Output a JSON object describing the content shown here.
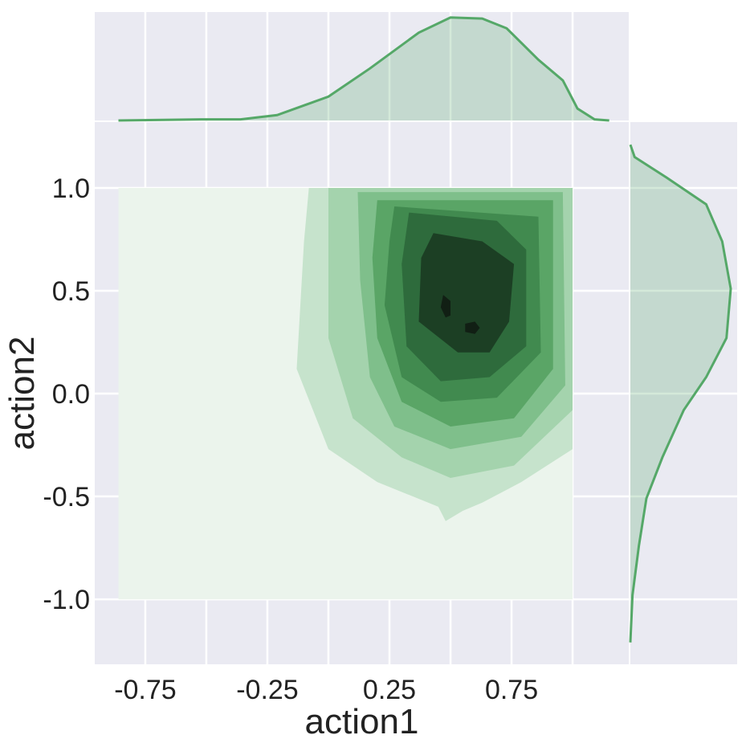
{
  "chart_data": [
    {
      "type": "kde2d",
      "xlabel": "action1",
      "ylabel": "action2",
      "xlim": [
        -0.957,
        1.23
      ],
      "ylim": [
        -1.316,
        1.32
      ],
      "xticks": [
        -0.75,
        -0.25,
        0.25,
        0.75
      ],
      "xgrid": [
        -0.75,
        -0.5,
        -0.25,
        0,
        0.25,
        0.5,
        0.75,
        1
      ],
      "yticks": [
        {
          "value": 1,
          "label": "1.0"
        },
        {
          "value": 0.5,
          "label": "0.5"
        },
        {
          "value": 0,
          "label": "0.0"
        },
        {
          "value": -0.5,
          "label": "-0.5"
        },
        {
          "value": -1,
          "label": "-1.0"
        }
      ],
      "grid": true,
      "background_color": "#eaeaf2",
      "levels": [
        {
          "color": "#ebf4ec",
          "x": [
            -0.86,
            1,
            1,
            -0.86
          ],
          "y": [
            1,
            1,
            -1,
            -1
          ]
        },
        {
          "color": "#c6e3cc",
          "x": [
            -0.08,
            1,
            1,
            0.79,
            0.63,
            0.55,
            0.48,
            0.45,
            0.2,
            0,
            -0.13,
            -0.1
          ],
          "y": [
            1,
            1,
            -0.27,
            -0.43,
            -0.53,
            -0.57,
            -0.62,
            -0.55,
            -0.43,
            -0.27,
            0.12,
            0.74
          ]
        },
        {
          "color": "#a4d3ad",
          "x": [
            0,
            1,
            1,
            0.76,
            0.5,
            0.3,
            0.1,
            0,
            0
          ],
          "y": [
            1,
            1,
            -0.08,
            -0.35,
            -0.41,
            -0.31,
            -0.12,
            0.27,
            0.74
          ]
        },
        {
          "color": "#7fbf8b",
          "x": [
            0.12,
            0.96,
            0.97,
            0.79,
            0.5,
            0.27,
            0.17,
            0.13
          ],
          "y": [
            0.98,
            0.98,
            0.04,
            -0.21,
            -0.27,
            -0.16,
            0.08,
            0.55
          ]
        },
        {
          "color": "#5aa566",
          "x": [
            0.2,
            0.92,
            0.92,
            0.76,
            0.5,
            0.3,
            0.2,
            0.18
          ],
          "y": [
            0.94,
            0.94,
            0.12,
            -0.12,
            -0.16,
            -0.04,
            0.27,
            0.66
          ]
        },
        {
          "color": "#418a4f",
          "x": [
            0.27,
            0.86,
            0.87,
            0.69,
            0.46,
            0.3,
            0.23,
            0.25
          ],
          "y": [
            0.91,
            0.86,
            0.2,
            -0.02,
            -0.04,
            0.08,
            0.43,
            0.74
          ]
        },
        {
          "color": "#2e6b3c",
          "x": [
            0.33,
            0.69,
            0.81,
            0.81,
            0.66,
            0.46,
            0.32,
            0.3
          ],
          "y": [
            0.88,
            0.84,
            0.7,
            0.23,
            0.08,
            0.06,
            0.23,
            0.63
          ]
        },
        {
          "color": "#1c3f24",
          "x": [
            0.43,
            0.63,
            0.76,
            0.74,
            0.66,
            0.53,
            0.37,
            0.38
          ],
          "y": [
            0.78,
            0.74,
            0.63,
            0.35,
            0.2,
            0.2,
            0.35,
            0.66
          ]
        },
        {
          "color": "#111f14",
          "x": [
            0.47,
            0.5,
            0.5,
            0.48,
            0.46
          ],
          "y": [
            0.48,
            0.45,
            0.38,
            0.37,
            0.42
          ]
        },
        {
          "color": "#111f14",
          "x": [
            0.56,
            0.6,
            0.62,
            0.6,
            0.56
          ],
          "y": [
            0.34,
            0.35,
            0.32,
            0.29,
            0.3
          ]
        }
      ]
    },
    {
      "type": "kde",
      "color": "#55a868",
      "ylim": [
        0,
        1
      ],
      "x": [
        -0.86,
        -0.52,
        -0.36,
        -0.21,
        0,
        0.17,
        0.37,
        0.5,
        0.63,
        0.73,
        0.86,
        0.96,
        1.02,
        1.09,
        1.15
      ],
      "values": [
        0,
        0.01,
        0.01,
        0.05,
        0.22,
        0.48,
        0.81,
        0.95,
        0.94,
        0.85,
        0.56,
        0.37,
        0.11,
        0.01,
        0
      ]
    },
    {
      "type": "kde_h",
      "color": "#55a868",
      "xlim": [
        0,
        1
      ],
      "y": [
        1.21,
        1.15,
        1.05,
        0.92,
        0.74,
        0.51,
        0.27,
        0.08,
        -0.08,
        -0.31,
        -0.51,
        -0.74,
        -0.98,
        -1.21
      ],
      "values": [
        0,
        0.04,
        0.34,
        0.71,
        0.86,
        0.94,
        0.9,
        0.71,
        0.5,
        0.3,
        0.15,
        0.08,
        0.02,
        0
      ]
    }
  ]
}
